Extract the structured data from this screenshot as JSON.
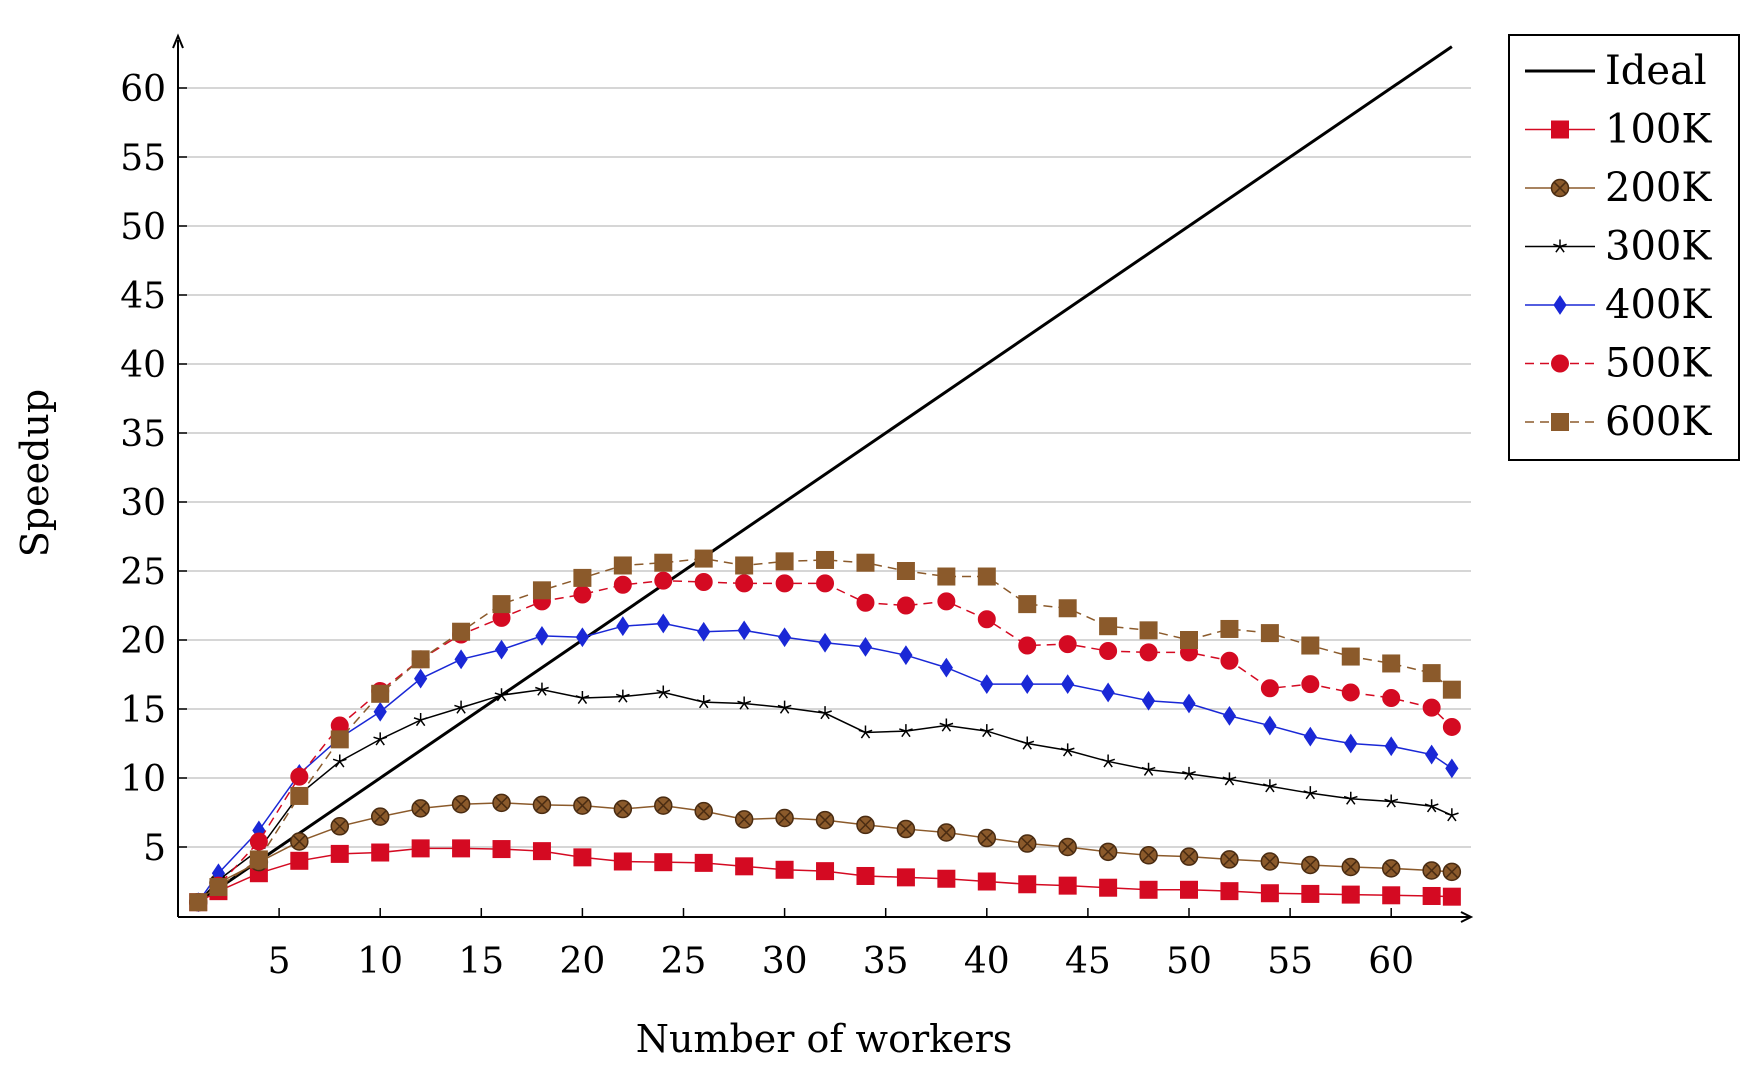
{
  "chart_data": {
    "type": "line",
    "title": "",
    "xlabel": "Number of workers",
    "ylabel": "Speedup",
    "xlim": [
      0,
      64
    ],
    "ylim": [
      0,
      64
    ],
    "x_ticks": [
      5,
      10,
      15,
      20,
      25,
      30,
      35,
      40,
      45,
      50,
      55,
      60
    ],
    "y_ticks": [
      5,
      10,
      15,
      20,
      25,
      30,
      35,
      40,
      45,
      50,
      55,
      60
    ],
    "grid": "horizontal",
    "legend_position": "outside-top-right",
    "x": [
      1,
      2,
      4,
      6,
      8,
      10,
      12,
      14,
      16,
      18,
      20,
      22,
      24,
      26,
      28,
      30,
      32,
      34,
      36,
      38,
      40,
      42,
      44,
      46,
      48,
      50,
      52,
      54,
      56,
      58,
      60,
      62,
      63
    ],
    "series": [
      {
        "name": "Ideal",
        "color": "#000000",
        "marker": "none",
        "dash": "solid",
        "x": [
          1,
          63
        ],
        "values": [
          1,
          63
        ]
      },
      {
        "name": "100K",
        "color": "#d40a22",
        "marker": "square",
        "dash": "solid",
        "values": [
          1,
          1.8,
          3.1,
          4.0,
          4.5,
          4.6,
          4.9,
          4.9,
          4.85,
          4.7,
          4.25,
          3.95,
          3.9,
          3.85,
          3.6,
          3.35,
          3.25,
          2.9,
          2.8,
          2.7,
          2.5,
          2.3,
          2.2,
          2.05,
          1.9,
          1.9,
          1.8,
          1.65,
          1.6,
          1.55,
          1.5,
          1.45,
          1.4
        ]
      },
      {
        "name": "200K",
        "color": "#8b5a2b",
        "marker": "circle-x",
        "dash": "solid",
        "values": [
          1,
          2.4,
          3.9,
          5.4,
          6.5,
          7.2,
          7.8,
          8.1,
          8.2,
          8.05,
          8.0,
          7.75,
          8.0,
          7.6,
          7.0,
          7.1,
          6.95,
          6.6,
          6.3,
          6.05,
          5.65,
          5.25,
          5.0,
          4.65,
          4.4,
          4.3,
          4.1,
          3.95,
          3.7,
          3.55,
          3.45,
          3.3,
          3.2
        ]
      },
      {
        "name": "300K",
        "color": "#000000",
        "marker": "star",
        "dash": "solid",
        "values": [
          1,
          2.6,
          4.8,
          8.8,
          11.2,
          12.8,
          14.2,
          15.1,
          16.0,
          16.4,
          15.8,
          15.9,
          16.2,
          15.5,
          15.4,
          15.1,
          14.7,
          13.3,
          13.4,
          13.8,
          13.4,
          12.5,
          12.0,
          11.2,
          10.6,
          10.3,
          9.9,
          9.4,
          8.9,
          8.5,
          8.3,
          7.95,
          7.3
        ]
      },
      {
        "name": "400K",
        "color": "#1a28d6",
        "marker": "diamond",
        "dash": "solid",
        "values": [
          1,
          3.1,
          6.2,
          10.3,
          12.9,
          14.8,
          17.2,
          18.6,
          19.3,
          20.3,
          20.2,
          21.0,
          21.2,
          20.6,
          20.7,
          20.2,
          19.8,
          19.5,
          18.9,
          18.0,
          16.8,
          16.8,
          16.8,
          16.2,
          15.6,
          15.4,
          14.5,
          13.8,
          13.0,
          12.5,
          12.3,
          11.7,
          10.7
        ]
      },
      {
        "name": "500K",
        "color": "#d40a22",
        "marker": "circle",
        "dash": "dashed",
        "values": [
          1,
          2.2,
          5.4,
          10.1,
          13.8,
          16.3,
          18.6,
          20.4,
          21.6,
          22.8,
          23.3,
          24.0,
          24.3,
          24.2,
          24.1,
          24.1,
          24.1,
          22.7,
          22.5,
          22.8,
          21.5,
          19.6,
          19.7,
          19.2,
          19.1,
          19.1,
          18.5,
          16.5,
          16.8,
          16.2,
          15.8,
          15.1,
          13.7
        ]
      },
      {
        "name": "600K",
        "color": "#8b5a2b",
        "marker": "square",
        "dash": "dashed",
        "values": [
          1,
          2.1,
          4.1,
          8.7,
          12.8,
          16.1,
          18.6,
          20.6,
          22.6,
          23.6,
          24.5,
          25.4,
          25.6,
          25.9,
          25.4,
          25.7,
          25.8,
          25.6,
          25.0,
          24.6,
          24.6,
          22.6,
          22.3,
          21.0,
          20.7,
          20.0,
          20.8,
          20.5,
          19.6,
          18.8,
          18.3,
          17.6,
          16.4
        ]
      }
    ]
  }
}
